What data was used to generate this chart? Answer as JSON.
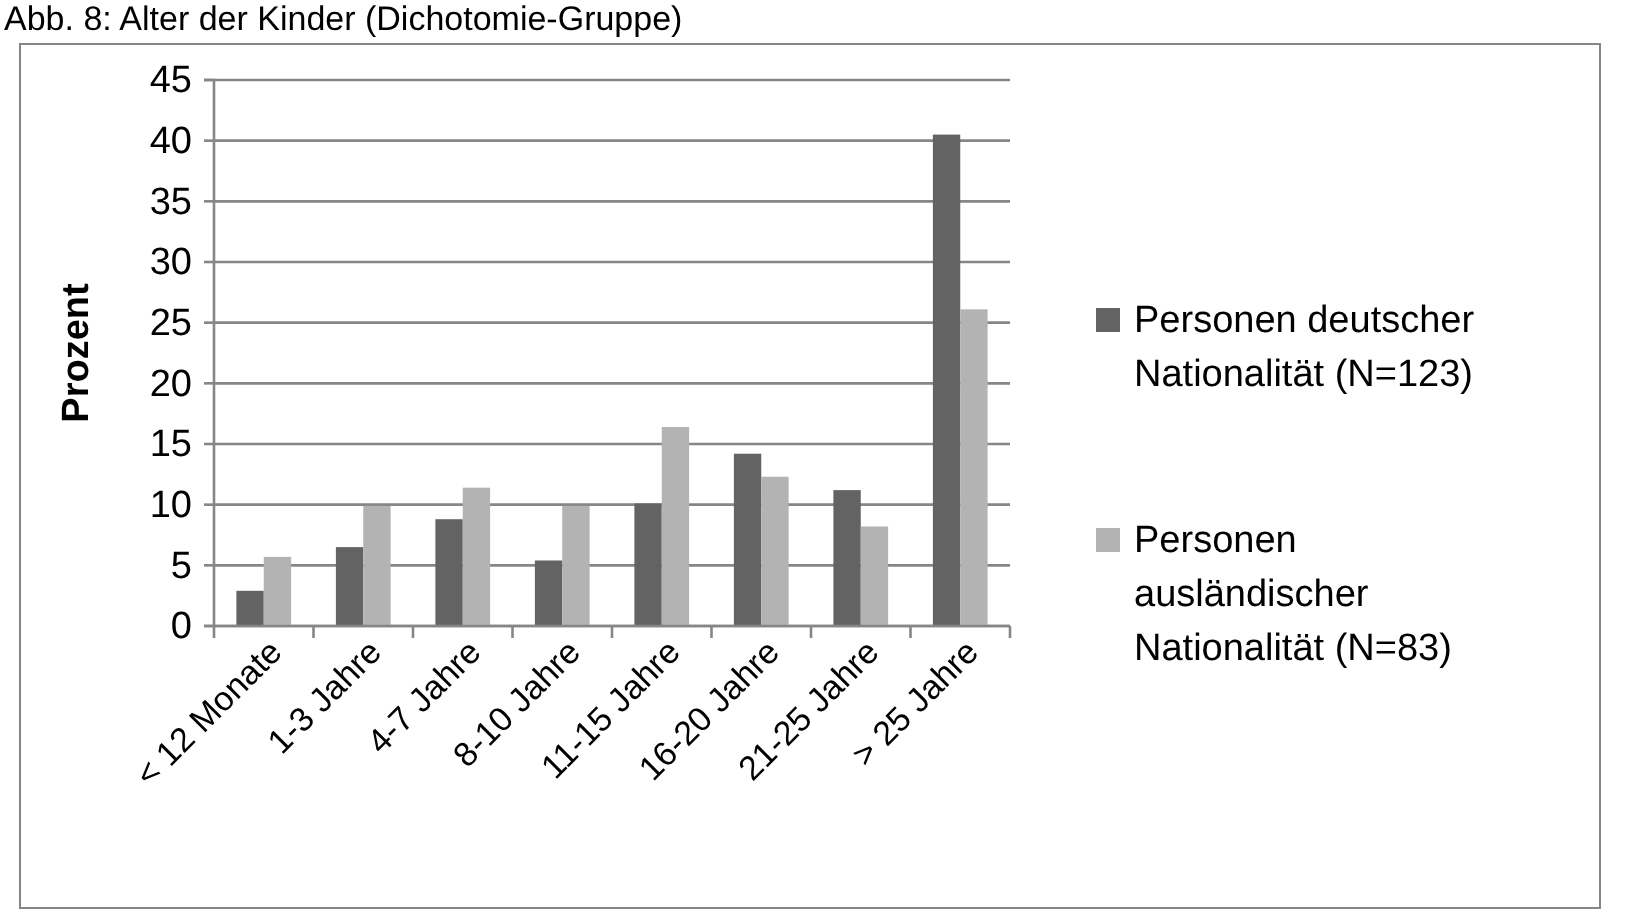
{
  "chart_data": {
    "type": "bar",
    "title": "Abb. 8: Alter der Kinder (Dichotomie-Gruppe)",
    "ylabel": "Prozent",
    "categories": [
      "< 12 Monate",
      "1-3 Jahre",
      "4-7 Jahre",
      "8-10 Jahre",
      "11-15 Jahre",
      "16-20 Jahre",
      "21-25 Jahre",
      "> 25 Jahre"
    ],
    "series": [
      {
        "name": "Personen deutscher Nationalität (N=123)",
        "color": "#636363",
        "values": [
          2.9,
          6.5,
          8.8,
          5.4,
          10.1,
          14.2,
          11.2,
          40.5
        ]
      },
      {
        "name": "Personen ausländischer Nationalität (N=83)",
        "color": "#b3b3b3",
        "values": [
          5.7,
          9.9,
          11.4,
          9.9,
          16.4,
          12.3,
          8.2,
          26.1
        ]
      }
    ],
    "ylim": [
      0,
      45
    ],
    "yticks": [
      0,
      5,
      10,
      15,
      20,
      25,
      30,
      35,
      40,
      45
    ],
    "grid": "y",
    "legend": "right"
  }
}
